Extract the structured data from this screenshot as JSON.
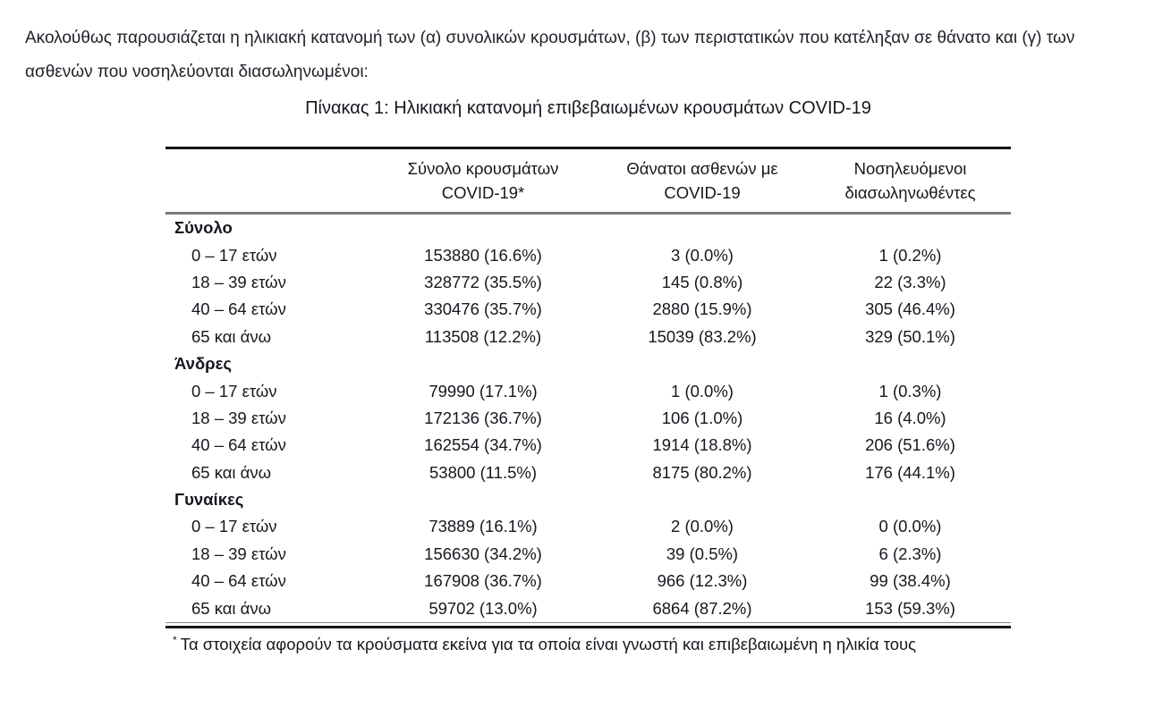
{
  "intro": "Ακολούθως παρουσιάζεται η ηλικιακή κατανομή των (α) συνολικών κρουσμάτων, (β) των περιστατικών που κατέληξαν σε θάνατο και (γ) των ασθενών που νοσηλεύονται διασωληνωμένοι:",
  "table": {
    "title": "Πίνακας 1: Ηλικιακή κατανομή επιβεβαιωμένων κρουσμάτων COVID-19",
    "columns": [
      {
        "line1": "Σύνολο κρουσμάτων",
        "line2": "COVID-19*"
      },
      {
        "line1": "Θάνατοι ασθενών με",
        "line2": "COVID-19"
      },
      {
        "line1": "Νοσηλευόμενοι",
        "line2": "διασωληνωθέντες"
      }
    ],
    "sections": [
      {
        "name": "Σύνολο",
        "rows": [
          {
            "age": "0 – 17 ετών",
            "values": [
              "153880 (16.6%)",
              "3 (0.0%)",
              "1 (0.2%)"
            ]
          },
          {
            "age": "18 – 39 ετών",
            "values": [
              "328772 (35.5%)",
              "145 (0.8%)",
              "22 (3.3%)"
            ]
          },
          {
            "age": "40 – 64 ετών",
            "values": [
              "330476 (35.7%)",
              "2880 (15.9%)",
              "305 (46.4%)"
            ]
          },
          {
            "age": "65 και άνω",
            "values": [
              "113508 (12.2%)",
              "15039 (83.2%)",
              "329 (50.1%)"
            ]
          }
        ]
      },
      {
        "name": "Άνδρες",
        "rows": [
          {
            "age": "0 – 17 ετών",
            "values": [
              "79990 (17.1%)",
              "1 (0.0%)",
              "1 (0.3%)"
            ]
          },
          {
            "age": "18 – 39 ετών",
            "values": [
              "172136 (36.7%)",
              "106 (1.0%)",
              "16 (4.0%)"
            ]
          },
          {
            "age": "40 – 64 ετών",
            "values": [
              "162554 (34.7%)",
              "1914 (18.8%)",
              "206 (51.6%)"
            ]
          },
          {
            "age": "65 και άνω",
            "values": [
              "53800 (11.5%)",
              "8175 (80.2%)",
              "176 (44.1%)"
            ]
          }
        ]
      },
      {
        "name": "Γυναίκες",
        "rows": [
          {
            "age": "0 – 17 ετών",
            "values": [
              "73889 (16.1%)",
              "2 (0.0%)",
              "0 (0.0%)"
            ]
          },
          {
            "age": "18 – 39 ετών",
            "values": [
              "156630 (34.2%)",
              "39 (0.5%)",
              "6 (2.3%)"
            ]
          },
          {
            "age": "40 – 64 ετών",
            "values": [
              "167908 (36.7%)",
              "966 (12.3%)",
              "99 (38.4%)"
            ]
          },
          {
            "age": "65 και άνω",
            "values": [
              "59702 (13.0%)",
              "6864 (87.2%)",
              "153 (59.3%)"
            ]
          }
        ]
      }
    ],
    "footnote": {
      "marker": "*",
      "text": "Τα στοιχεία αφορούν τα κρούσματα εκείνα για τα οποία είναι γνωστή και επιβεβαιωμένη η ηλικία τους"
    }
  },
  "colors": {
    "text": "#16181f",
    "rule_dark": "#161616",
    "rule_gray": "#7b7b7b",
    "background": "#ffffff"
  }
}
